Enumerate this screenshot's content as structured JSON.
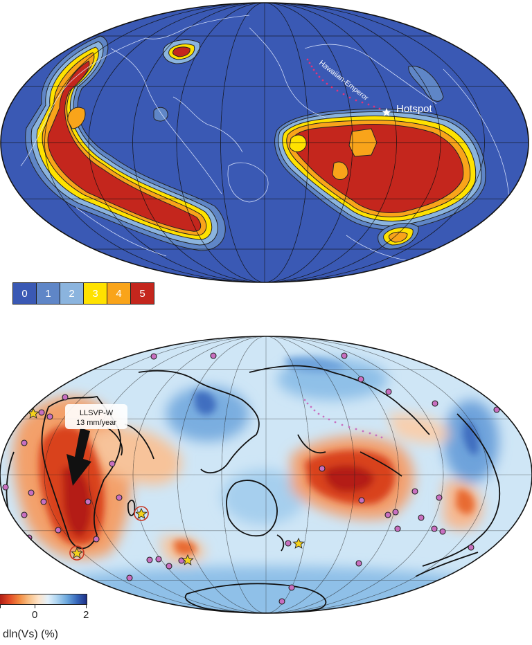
{
  "top_map": {
    "annotations": {
      "chain_label": "Hawaiian-Emperor",
      "hotspot_label": "Hotspot"
    },
    "legend": {
      "items": [
        {
          "label": "0",
          "color": "#3a59b4"
        },
        {
          "label": "1",
          "color": "#5f86c7"
        },
        {
          "label": "2",
          "color": "#8bb4de"
        },
        {
          "label": "3",
          "color": "#ffe200"
        },
        {
          "label": "4",
          "color": "#f9a41a"
        },
        {
          "label": "5",
          "color": "#c4261d"
        }
      ]
    }
  },
  "bottom_map": {
    "arrow_label_line1": "LLSVP-W",
    "arrow_label_line2": "13 mm/year",
    "colorbar": {
      "title": "dln(Vs) (%)",
      "ticks": [
        "0",
        "2"
      ],
      "colors": [
        "#b01e15",
        "#e24a26",
        "#f2893f",
        "#f8bf85",
        "#fde3c9",
        "#e2f1fb",
        "#a9d1ef",
        "#6aa6dc",
        "#3768bb",
        "#1d2f86"
      ]
    }
  },
  "colors": {
    "ocean_blue": "#3a59b4",
    "dot_fill": "#c86fc0",
    "star_fill": "#f5d21b"
  }
}
